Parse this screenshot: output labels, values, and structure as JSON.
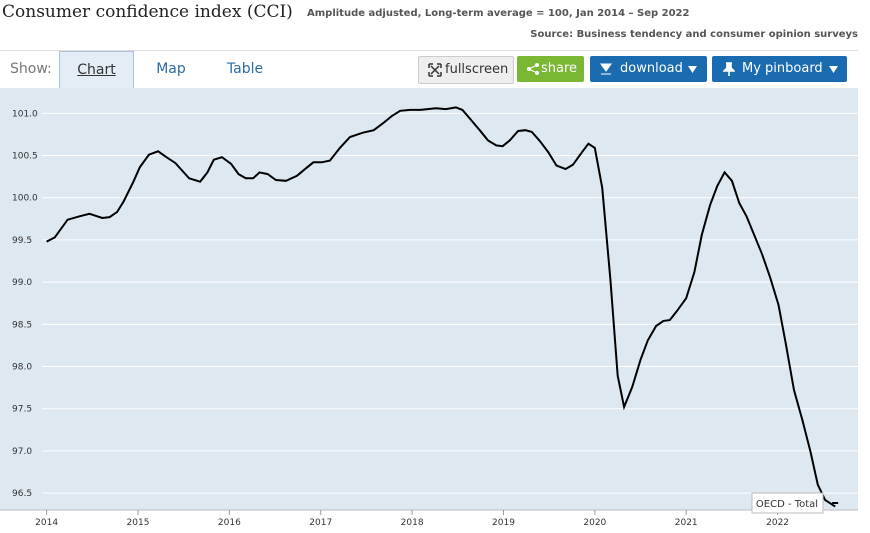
{
  "header": {
    "subtitle": "Amplitude adjusted, Long-term average = 100, Jan 2014 – Sep 2022",
    "source": "Source: Business tendency and consumer opinion surveys"
  },
  "toolbar": {
    "show_label": "Show:",
    "tabs": [
      "Chart",
      "Map",
      "Table"
    ],
    "buttons": [
      "fullscreen",
      "share",
      "download",
      "My pinboard"
    ]
  },
  "chart_data": {
    "type": "line",
    "title": "Consumer confidence index (CCI)",
    "x": [
      2014.0,
      2014.09,
      2014.23,
      2014.36,
      2014.47,
      2014.61,
      2014.69,
      2014.77,
      2014.84,
      2014.95,
      2015.02,
      2015.12,
      2015.22,
      2015.3,
      2015.41,
      2015.56,
      2015.68,
      2015.76,
      2015.83,
      2015.92,
      2016.02,
      2016.1,
      2016.18,
      2016.26,
      2016.33,
      2016.42,
      2016.51,
      2016.62,
      2016.74,
      2016.84,
      2016.92,
      2017.01,
      2017.1,
      2017.21,
      2017.32,
      2017.46,
      2017.58,
      2017.69,
      2017.78,
      2017.87,
      2017.98,
      2018.09,
      2018.17,
      2018.26,
      2018.37,
      2018.48,
      2018.55,
      2018.63,
      2018.74,
      2018.83,
      2018.92,
      2018.99,
      2019.07,
      2019.16,
      2019.24,
      2019.31,
      2019.4,
      2019.49,
      2019.58,
      2019.68,
      2019.76,
      2019.86,
      2019.93,
      2020.0,
      2020.08,
      2020.17,
      2020.25,
      2020.32,
      2020.41,
      2020.5,
      2020.58,
      2020.67,
      2020.75,
      2020.82,
      2020.9,
      2021.0,
      2021.09,
      2021.17,
      2021.26,
      2021.34,
      2021.42,
      2021.5,
      2021.58,
      2021.66,
      2021.74,
      2021.83,
      2021.92,
      2022.01,
      2022.09,
      2022.18,
      2022.27,
      2022.36,
      2022.44,
      2022.52,
      2022.63
    ],
    "series": [
      {
        "name": "OECD - Total",
        "color": "#000000",
        "values": [
          99.48,
          99.53,
          99.74,
          99.78,
          99.81,
          99.76,
          99.77,
          99.83,
          99.95,
          100.19,
          100.36,
          100.51,
          100.55,
          100.49,
          100.41,
          100.23,
          100.19,
          100.3,
          100.45,
          100.48,
          100.4,
          100.28,
          100.23,
          100.23,
          100.3,
          100.28,
          100.21,
          100.2,
          100.26,
          100.35,
          100.42,
          100.42,
          100.44,
          100.59,
          100.72,
          100.77,
          100.8,
          100.89,
          100.97,
          101.03,
          101.04,
          101.04,
          101.05,
          101.06,
          101.05,
          101.07,
          101.04,
          100.94,
          100.8,
          100.68,
          100.62,
          100.61,
          100.68,
          100.79,
          100.8,
          100.78,
          100.67,
          100.54,
          100.38,
          100.34,
          100.39,
          100.54,
          100.64,
          100.59,
          100.12,
          99.03,
          97.89,
          97.52,
          97.76,
          98.08,
          98.31,
          98.48,
          98.54,
          98.55,
          98.66,
          98.81,
          99.12,
          99.56,
          99.91,
          100.14,
          100.3,
          100.2,
          99.94,
          99.78,
          99.57,
          99.33,
          99.05,
          98.73,
          98.27,
          97.72,
          97.37,
          96.99,
          96.6,
          96.42,
          96.34
        ]
      }
    ],
    "xlim": [
      2013.49,
      2022.88
    ],
    "xticks": [
      2014,
      2015,
      2016,
      2017,
      2018,
      2019,
      2020,
      2021,
      2022
    ],
    "ylim": [
      96.3,
      101.3
    ],
    "yticks": [
      96.5,
      {
        "value": 97,
        "label": "97.0"
      },
      97.5,
      {
        "value": 98,
        "label": "98.0"
      },
      98.5,
      {
        "value": 99,
        "label": "99.0"
      },
      99.5,
      {
        "value": 100,
        "label": "100.0"
      },
      100.5,
      {
        "value": 101,
        "label": "101.0"
      }
    ],
    "grid": true
  }
}
